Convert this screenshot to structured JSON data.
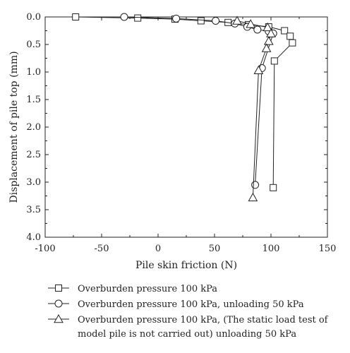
{
  "chart_data": {
    "type": "line",
    "title": "",
    "xlabel": "Pile skin friction (N)",
    "ylabel": "Displacement of pile top (mm)",
    "xlim": [
      -100,
      150
    ],
    "ylim": [
      0.0,
      4.0
    ],
    "y_inverted": true,
    "x_ticks": [
      -100,
      -50,
      0,
      50,
      100,
      150
    ],
    "x_tick_labels": [
      "-100",
      "-50",
      "0",
      "50",
      "100",
      "150"
    ],
    "y_ticks": [
      0.0,
      0.5,
      1.0,
      1.5,
      2.0,
      2.5,
      3.0,
      3.5,
      4.0
    ],
    "y_tick_labels": [
      "0.0",
      "0.5",
      "1.0",
      "1.5",
      "2.0",
      "2.5",
      "3.0",
      "3.5",
      "4.0"
    ],
    "grid": false,
    "legend_position": "bottom",
    "series": [
      {
        "name": "Overburden pressure 100 kPa",
        "marker": "square",
        "points": [
          [
            -73,
            0.0
          ],
          [
            -18,
            0.02
          ],
          [
            15,
            0.04
          ],
          [
            38,
            0.07
          ],
          [
            62,
            0.1
          ],
          [
            80,
            0.14
          ],
          [
            98,
            0.18
          ],
          [
            112,
            0.25
          ],
          [
            117,
            0.35
          ],
          [
            119,
            0.47
          ],
          [
            103,
            0.8
          ],
          [
            102,
            3.1
          ]
        ]
      },
      {
        "name": "Overburden pressure 100 kPa, unloading 50 kPa",
        "marker": "circle",
        "points": [
          [
            -30,
            0.0
          ],
          [
            16,
            0.03
          ],
          [
            51,
            0.07
          ],
          [
            68,
            0.12
          ],
          [
            79,
            0.18
          ],
          [
            88,
            0.23
          ],
          [
            98,
            0.26
          ],
          [
            102,
            0.3
          ],
          [
            92,
            0.93
          ],
          [
            86,
            3.05
          ]
        ]
      },
      {
        "name": "Overburden pressure 100 kPa, (The static load test of model pile is not carried out) unloading 50 kPa",
        "legend_lines": [
          "Overburden pressure 100 kPa, (The static load test of",
          "model pile is not carried out) unloading 50 kPa"
        ],
        "marker": "triangle",
        "points": [
          [
            70,
            0.07
          ],
          [
            82,
            0.13
          ],
          [
            97,
            0.19
          ],
          [
            100,
            0.3
          ],
          [
            98,
            0.44
          ],
          [
            96,
            0.57
          ],
          [
            89,
            0.97
          ],
          [
            84,
            3.28
          ]
        ]
      }
    ]
  }
}
